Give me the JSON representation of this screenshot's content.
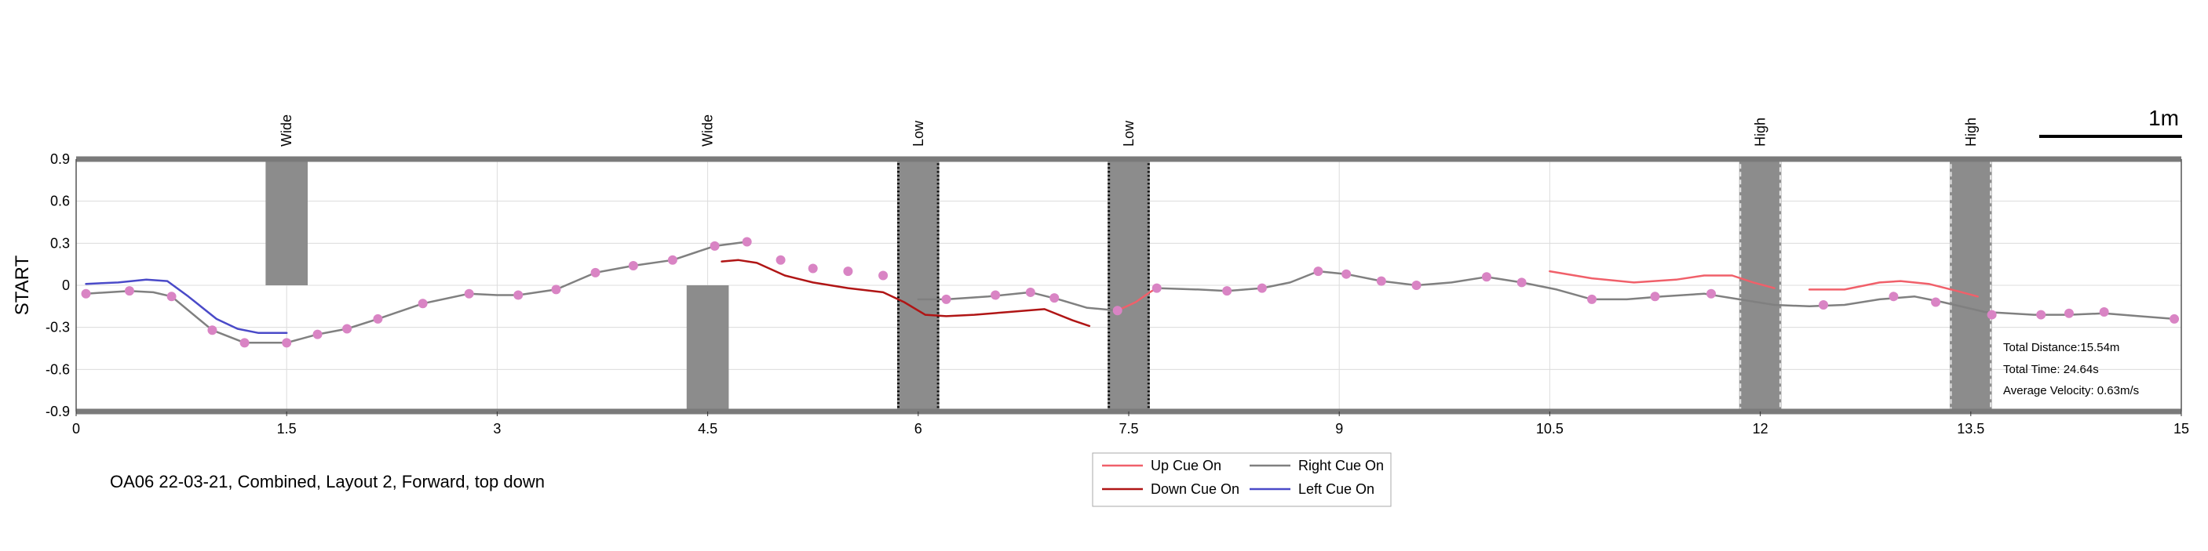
{
  "chart_data": {
    "type": "line",
    "caption": "OA06 22-03-21, Combined, Layout 2, Forward, top down",
    "ylabel": "START",
    "xlim": [
      0,
      15
    ],
    "ylim": [
      -0.9,
      0.9
    ],
    "xticks": [
      0,
      1.5,
      3,
      4.5,
      6,
      7.5,
      9,
      10.5,
      12,
      13.5,
      15
    ],
    "xtick_labels": [
      "0",
      "1.5",
      "3",
      "4.5",
      "6",
      "7.5",
      "9",
      "10.5",
      "12",
      "13.5",
      "15"
    ],
    "yticks": [
      0.9,
      0.6,
      0.3,
      0,
      -0.3,
      -0.6,
      -0.9
    ],
    "ytick_labels": [
      "0.9",
      "0.6",
      "0.3",
      "0",
      "-0.3",
      "-0.6",
      "-0.9"
    ],
    "grid": true,
    "scale_bar_label": "1m",
    "stats": {
      "distance": "Total Distance:15.54m",
      "time": "Total Time: 24.64s",
      "velocity": "Average Velocity: 0.63m/s"
    },
    "obstacles": [
      {
        "label": "Wide",
        "x": [
          1.35,
          1.65
        ],
        "y": [
          0,
          0.9
        ],
        "style": "solid"
      },
      {
        "label": "Wide",
        "x": [
          4.35,
          4.65
        ],
        "y": [
          -0.9,
          0
        ],
        "style": "solid"
      },
      {
        "label": "Low",
        "x": [
          5.85,
          6.15
        ],
        "y": [
          -0.9,
          0.9
        ],
        "style": "black-dotted"
      },
      {
        "label": "Low",
        "x": [
          7.35,
          7.65
        ],
        "y": [
          -0.9,
          0.9
        ],
        "style": "black-dotted"
      },
      {
        "label": "High",
        "x": [
          11.85,
          12.15
        ],
        "y": [
          -0.9,
          0.9
        ],
        "style": "white-dashed"
      },
      {
        "label": "High",
        "x": [
          13.35,
          13.65
        ],
        "y": [
          -0.9,
          0.9
        ],
        "style": "white-dashed"
      }
    ],
    "legend": {
      "placement": "bottom-center",
      "entries": [
        {
          "label": "Up Cue On",
          "color": "#f0606a"
        },
        {
          "label": "Right Cue On",
          "color": "#808080"
        },
        {
          "label": "Down Cue On",
          "color": "#b01515"
        },
        {
          "label": "Left Cue On",
          "color": "#4a4ac8"
        }
      ]
    },
    "series": [
      {
        "name": "Left Cue On",
        "color": "#4a4ac8",
        "x": [
          0.07,
          0.3,
          0.5,
          0.65,
          0.8,
          1.0,
          1.15,
          1.3,
          1.5
        ],
        "y": [
          0.01,
          0.02,
          0.04,
          0.03,
          -0.08,
          -0.24,
          -0.31,
          -0.34,
          -0.34
        ]
      },
      {
        "name": "Right Cue On",
        "color": "#808080",
        "x": [
          0.07,
          0.38,
          0.55,
          0.68,
          0.97,
          1.2,
          1.5,
          1.72,
          1.93,
          2.15,
          2.47,
          2.8,
          3.0,
          3.15,
          3.42,
          3.7,
          3.97,
          4.25,
          4.55,
          4.78
        ],
        "y": [
          -0.06,
          -0.04,
          -0.05,
          -0.08,
          -0.32,
          -0.41,
          -0.41,
          -0.35,
          -0.31,
          -0.24,
          -0.13,
          -0.06,
          -0.07,
          -0.07,
          -0.03,
          0.09,
          0.14,
          0.18,
          0.28,
          0.31
        ]
      },
      {
        "name": "Down Cue On",
        "color": "#b01515",
        "x": [
          4.6,
          4.72,
          4.85,
          5.05,
          5.25,
          5.5,
          5.75,
          5.9,
          6.05,
          6.2,
          6.4,
          6.65,
          6.9,
          7.1,
          7.22
        ],
        "y": [
          0.17,
          0.18,
          0.16,
          0.07,
          0.02,
          -0.02,
          -0.05,
          -0.12,
          -0.21,
          -0.22,
          -0.21,
          -0.19,
          -0.17,
          -0.25,
          -0.29
        ]
      },
      {
        "name": "Right Cue On",
        "color": "#808080",
        "x": [
          6.0,
          6.2,
          6.5,
          6.8,
          7.0,
          7.2,
          7.42
        ],
        "y": [
          -0.1,
          -0.1,
          -0.08,
          -0.05,
          -0.1,
          -0.16,
          -0.18
        ]
      },
      {
        "name": "Up Cue On",
        "color": "#f0606a",
        "x": [
          7.42,
          7.55,
          7.65,
          7.7
        ],
        "y": [
          -0.18,
          -0.12,
          -0.05,
          -0.02
        ]
      },
      {
        "name": "Right Cue On",
        "color": "#808080",
        "x": [
          7.7,
          8.0,
          8.2,
          8.45,
          8.65,
          8.85,
          9.05,
          9.3,
          9.55,
          9.8,
          10.05,
          10.3,
          10.55,
          10.8,
          11.05,
          11.3,
          11.6,
          11.85,
          12.1,
          12.35,
          12.6,
          12.85,
          13.1,
          13.3,
          13.6,
          13.95,
          14.2,
          14.45,
          14.7,
          14.95
        ],
        "y": [
          -0.02,
          -0.03,
          -0.04,
          -0.02,
          0.02,
          0.1,
          0.08,
          0.03,
          0.0,
          0.02,
          0.06,
          0.02,
          -0.03,
          -0.1,
          -0.1,
          -0.08,
          -0.06,
          -0.1,
          -0.14,
          -0.15,
          -0.14,
          -0.1,
          -0.08,
          -0.12,
          -0.19,
          -0.21,
          -0.21,
          -0.2,
          -0.22,
          -0.24
        ]
      },
      {
        "name": "Up Cue On",
        "color": "#f0606a",
        "x": [
          10.5,
          10.8,
          11.1,
          11.4,
          11.6,
          11.8,
          11.95,
          12.1
        ],
        "y": [
          0.1,
          0.05,
          0.02,
          0.04,
          0.07,
          0.07,
          0.02,
          -0.02
        ]
      },
      {
        "name": "Up Cue On",
        "color": "#f0606a",
        "x": [
          12.35,
          12.6,
          12.85,
          13.0,
          13.2,
          13.4,
          13.55
        ],
        "y": [
          -0.03,
          -0.03,
          0.02,
          0.03,
          0.01,
          -0.04,
          -0.08
        ]
      }
    ],
    "markers": {
      "color": "#d984c4",
      "x": [
        0.07,
        0.38,
        0.68,
        0.97,
        1.2,
        1.5,
        1.72,
        1.93,
        2.15,
        2.47,
        2.8,
        3.15,
        3.42,
        3.7,
        3.97,
        4.25,
        4.55,
        4.78,
        5.02,
        5.25,
        5.5,
        5.75,
        6.2,
        6.55,
        6.8,
        6.97,
        7.42,
        7.7,
        8.2,
        8.45,
        8.85,
        9.05,
        9.3,
        9.55,
        10.05,
        10.3,
        10.8,
        11.25,
        11.65,
        12.45,
        12.95,
        13.25,
        13.65,
        14.0,
        14.2,
        14.45,
        14.95
      ],
      "y": [
        -0.06,
        -0.04,
        -0.08,
        -0.32,
        -0.41,
        -0.41,
        -0.35,
        -0.31,
        -0.24,
        -0.13,
        -0.06,
        -0.07,
        -0.03,
        0.09,
        0.14,
        0.18,
        0.28,
        0.31,
        0.18,
        0.12,
        0.1,
        0.07,
        -0.1,
        -0.07,
        -0.05,
        -0.09,
        -0.18,
        -0.02,
        -0.04,
        -0.02,
        0.1,
        0.08,
        0.03,
        0.0,
        0.06,
        0.02,
        -0.1,
        -0.08,
        -0.06,
        -0.14,
        -0.08,
        -0.12,
        -0.21,
        -0.21,
        -0.2,
        -0.19,
        -0.24
      ]
    }
  }
}
